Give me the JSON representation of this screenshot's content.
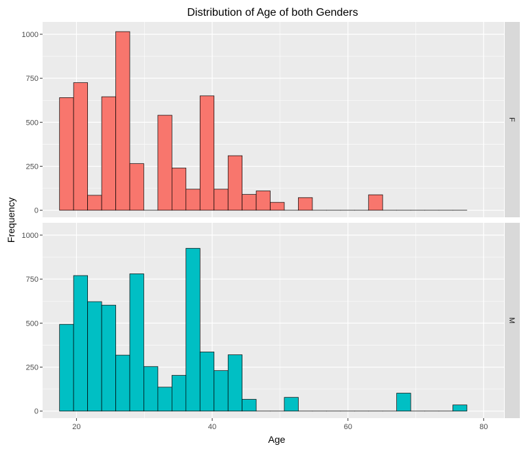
{
  "chart_data": {
    "type": "histogram",
    "title": "Distribution of Age of both Genders",
    "xlabel": "Age",
    "ylabel": "Frequency",
    "xlim": [
      15,
      83
    ],
    "xticks": [
      20,
      40,
      60,
      80
    ],
    "ylim": [
      -40,
      1070
    ],
    "yticks": [
      0,
      250,
      500,
      750,
      1000
    ],
    "bin_start": 17.5,
    "bin_width": 2.07,
    "colors": {
      "F": "#F8766D",
      "M": "#00BFC4",
      "panel": "#EBEBEB",
      "strip": "#D9D9D9",
      "grid": "#FFFFFF",
      "outline": "#000000"
    },
    "panels": [
      {
        "label": "F",
        "values": [
          640,
          725,
          85,
          645,
          1015,
          265,
          0,
          540,
          240,
          120,
          650,
          120,
          310,
          90,
          110,
          45,
          0,
          72,
          0,
          0,
          0,
          0,
          88,
          0,
          0,
          0,
          0,
          0,
          0
        ]
      },
      {
        "label": "M",
        "values": [
          493,
          770,
          622,
          602,
          318,
          780,
          253,
          136,
          203,
          925,
          336,
          230,
          320,
          67,
          0,
          0,
          78,
          0,
          0,
          0,
          0,
          0,
          0,
          0,
          102,
          0,
          0,
          0,
          35
        ]
      }
    ]
  }
}
